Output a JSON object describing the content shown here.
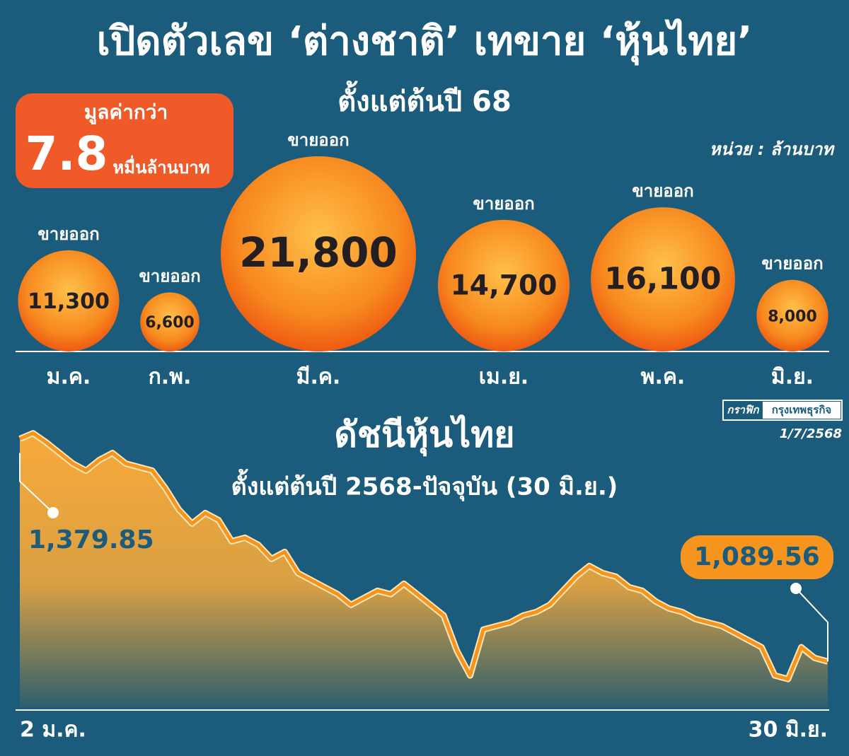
{
  "header": {
    "title": "เปิดตัวเลข ‘ต่างชาติ’ เทขาย ‘หุ้นไทย’",
    "subtitle": "ตั้งแต่ต้นปี 68"
  },
  "summary": {
    "label": "มูลค่ากว่า",
    "value": 7.8,
    "unit": "หมื่นล้านบาท"
  },
  "unit_note": "หน่วย : ล้านบาท",
  "credit": {
    "graphic": "กราฟิก",
    "source": "กรุงเทพธุรกิจ",
    "date": "1/7/2568"
  },
  "chart_data": [
    {
      "type": "bubble",
      "annotation": "ขายออก",
      "color": "#f26a1b",
      "categories": [
        "ม.ค.",
        "ก.พ.",
        "มี.ค.",
        "เม.ย.",
        "พ.ค.",
        "มิ.ย."
      ],
      "values": [
        11300,
        6600,
        21800,
        14700,
        16100,
        8000
      ],
      "value_labels": [
        "11,300",
        "6,600",
        "21,800",
        "14,700",
        "16,100",
        "8,000"
      ]
    },
    {
      "type": "line",
      "title": "ดัชนีหุ้นไทย",
      "subtitle": "ตั้งแต่ต้นปี 2568-ปัจจุบัน (30 มิ.ย.)",
      "color": "#f7941d",
      "ylim": [
        1030,
        1420
      ],
      "categories": [
        "2 ม.ค.",
        null,
        null,
        null,
        null,
        null,
        null,
        null,
        null,
        null,
        null,
        null,
        null,
        null,
        null,
        null,
        null,
        null,
        null,
        null,
        null,
        null,
        null,
        null,
        null,
        null,
        null,
        null,
        null,
        null,
        null,
        null,
        null,
        null,
        null,
        null,
        null,
        null,
        null,
        null,
        null,
        null,
        null,
        null,
        null,
        null,
        null,
        null,
        null,
        null,
        null,
        null,
        null,
        null,
        null,
        null,
        null,
        null,
        null,
        null,
        null,
        "30 มิ.ย."
      ],
      "values": [
        1379.85,
        1387.2,
        1375.2,
        1361.4,
        1347.6,
        1338.4,
        1352.2,
        1361.4,
        1347.6,
        1343.0,
        1338.4,
        1315.4,
        1287.8,
        1269.4,
        1283.1,
        1274.0,
        1246.3,
        1250.9,
        1241.7,
        1223.3,
        1232.5,
        1204.9,
        1195.7,
        1186.5,
        1177.3,
        1163.4,
        1172.6,
        1181.8,
        1177.3,
        1191.0,
        1177.3,
        1163.4,
        1149.6,
        1103.6,
        1071.3,
        1131.2,
        1135.8,
        1140.4,
        1149.6,
        1154.2,
        1163.4,
        1181.8,
        1200.2,
        1214.1,
        1204.9,
        1200.2,
        1186.5,
        1181.8,
        1168.0,
        1158.8,
        1154.2,
        1145.0,
        1140.4,
        1135.8,
        1126.6,
        1117.4,
        1108.2,
        1071.3,
        1066.7,
        1108.2,
        1094.3,
        1089.56
      ],
      "value_labels": [
        "1,379.85",
        null,
        null,
        null,
        null,
        null,
        null,
        null,
        null,
        null,
        null,
        null,
        null,
        null,
        null,
        null,
        null,
        null,
        null,
        null,
        null,
        null,
        null,
        null,
        null,
        null,
        null,
        null,
        null,
        null,
        null,
        null,
        null,
        null,
        null,
        null,
        null,
        null,
        null,
        null,
        null,
        null,
        null,
        null,
        null,
        null,
        null,
        null,
        null,
        null,
        null,
        null,
        null,
        null,
        null,
        null,
        null,
        null,
        null,
        null,
        null,
        "1,089.56"
      ]
    }
  ]
}
